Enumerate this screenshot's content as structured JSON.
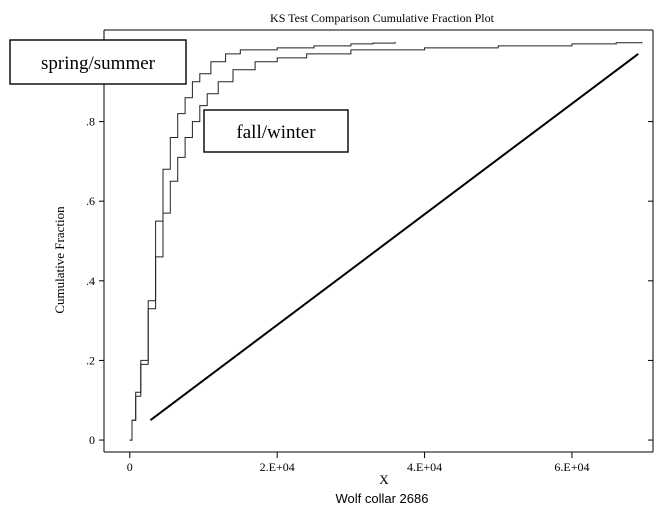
{
  "chart_data": {
    "type": "line",
    "title": "KS  Test Comparison Cumulative Fraction Plot",
    "xlabel": "X",
    "ylabel": "Cumulative Fraction",
    "caption": "Wolf collar 2686",
    "xlim": [
      -3500,
      71000
    ],
    "ylim": [
      -0.03,
      1.03
    ],
    "x_ticks": [
      {
        "value": 0,
        "label": "0"
      },
      {
        "value": 20000,
        "label": "2.E+04"
      },
      {
        "value": 40000,
        "label": "4.E+04"
      },
      {
        "value": 60000,
        "label": "6.E+04"
      }
    ],
    "y_ticks": [
      {
        "value": 0,
        "label": "0"
      },
      {
        "value": 0.2,
        "label": ".2"
      },
      {
        "value": 0.4,
        "label": ".4"
      },
      {
        "value": 0.6,
        "label": ".6"
      },
      {
        "value": 0.8,
        "label": ".8"
      }
    ],
    "series": [
      {
        "name": "spring/summer",
        "x": [
          0,
          300,
          800,
          1500,
          2500,
          3500,
          4500,
          5500,
          6500,
          7500,
          8500,
          9500,
          11000,
          13000,
          15000,
          20000,
          25000,
          30000,
          33000,
          36000
        ],
        "y": [
          0,
          0.05,
          0.12,
          0.2,
          0.35,
          0.55,
          0.68,
          0.76,
          0.82,
          0.86,
          0.9,
          0.92,
          0.95,
          0.97,
          0.98,
          0.985,
          0.99,
          0.995,
          0.997,
          1.0
        ]
      },
      {
        "name": "fall/winter",
        "x": [
          0,
          300,
          800,
          1500,
          2500,
          3500,
          4500,
          5500,
          6500,
          7500,
          8500,
          9500,
          10500,
          12000,
          14000,
          17000,
          20000,
          24000,
          30000,
          40000,
          50000,
          60000,
          66000,
          69500
        ],
        "y": [
          0,
          0.05,
          0.11,
          0.19,
          0.33,
          0.46,
          0.57,
          0.65,
          0.71,
          0.76,
          0.8,
          0.84,
          0.87,
          0.9,
          0.93,
          0.95,
          0.96,
          0.97,
          0.98,
          0.985,
          0.99,
          0.995,
          0.998,
          1.0
        ]
      }
    ],
    "reference_line": {
      "x": [
        2800,
        69000
      ],
      "y": [
        0.05,
        0.97
      ]
    },
    "annotations": [
      {
        "text": "spring/summer"
      },
      {
        "text": "fall/winter"
      }
    ],
    "grid": false,
    "legend": "none"
  }
}
